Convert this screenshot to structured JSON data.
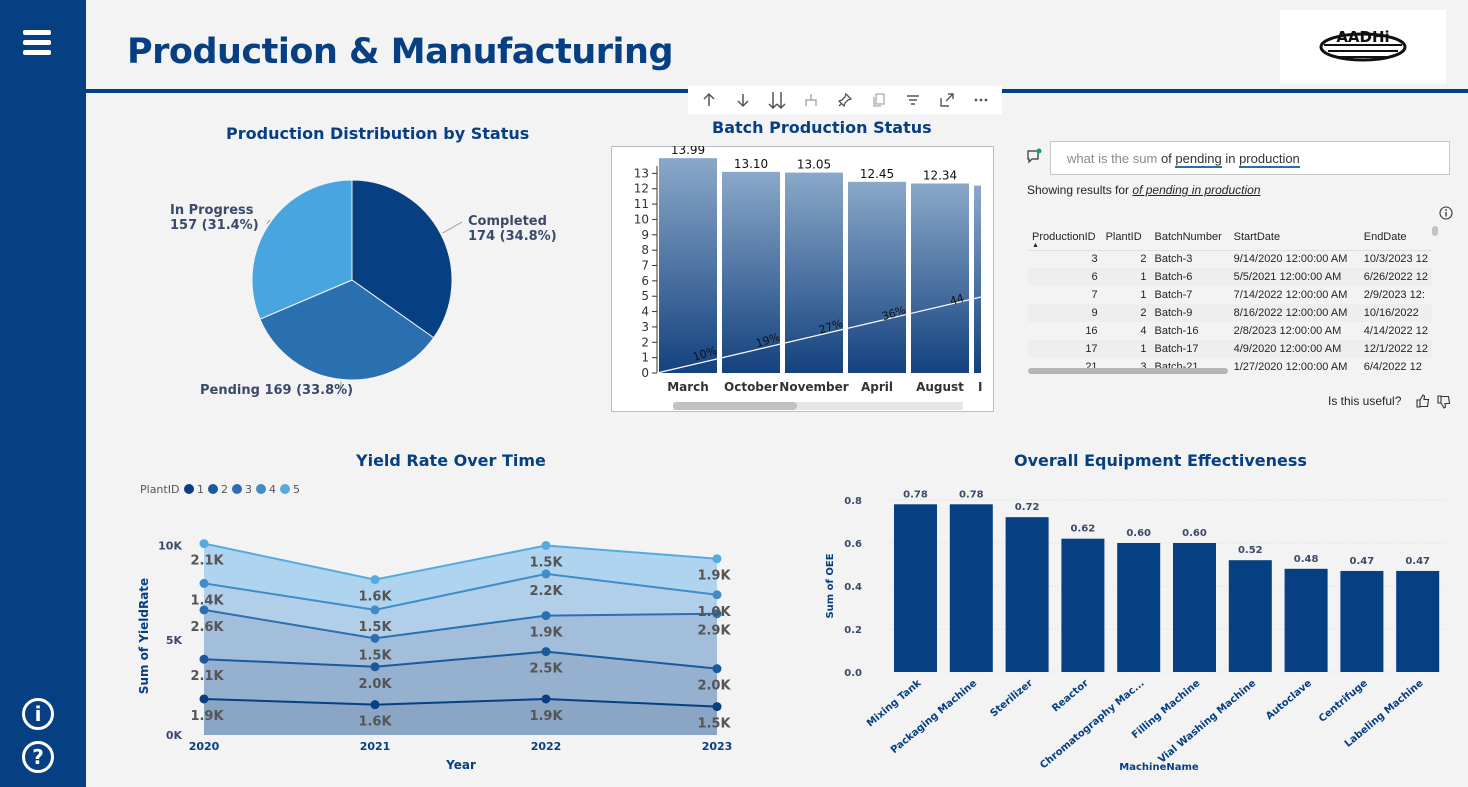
{
  "page": {
    "title": "Production & Manufacturing",
    "logo_text": "AADHi"
  },
  "sidebar": {
    "menu_icon": "hamburger-icon",
    "info_icon": "info-icon",
    "help_icon": "help-icon"
  },
  "toolbar": {
    "icons": [
      "arrow-up-icon",
      "arrow-down-icon",
      "double-arrow-down-icon",
      "expand-hierarchy-icon",
      "pin-icon",
      "copy-icon",
      "filter-icon",
      "focus-mode-icon",
      "more-options-icon"
    ]
  },
  "qna": {
    "placeholder_part": "what is the sum",
    "query_part1": "of",
    "token1": "pending",
    "query_part2": "in",
    "token2": "production",
    "showing_label": "Showing results for",
    "showing_query": "of pending in production",
    "useful_label": "Is this useful?",
    "columns": [
      "ProductionID",
      "PlantID",
      "BatchNumber",
      "StartDate",
      "EndDate"
    ],
    "rows": [
      [
        "3",
        "2",
        "Batch-3",
        "9/14/2020 12:00:00 AM",
        "10/3/2023 12"
      ],
      [
        "6",
        "1",
        "Batch-6",
        "5/5/2021 12:00:00 AM",
        "6/26/2022 12"
      ],
      [
        "7",
        "1",
        "Batch-7",
        "7/14/2022 12:00:00 AM",
        "2/9/2023 12:"
      ],
      [
        "9",
        "2",
        "Batch-9",
        "8/16/2022 12:00:00 AM",
        "10/16/2022"
      ],
      [
        "16",
        "4",
        "Batch-16",
        "2/8/2023 12:00:00 AM",
        "4/14/2022 12"
      ],
      [
        "17",
        "1",
        "Batch-17",
        "4/9/2020 12:00:00 AM",
        "12/1/2022 12"
      ],
      [
        "21",
        "3",
        "Batch-21",
        "1/27/2020 12:00:00 AM",
        "6/4/2022 12"
      ]
    ]
  },
  "chart_data": [
    {
      "id": "pie",
      "type": "pie",
      "title": "Production Distribution by Status",
      "slices": [
        {
          "name": "Completed",
          "value": 174,
          "label_line1": "Completed",
          "label_line2": "174 (34.8%)",
          "color": "#063f82"
        },
        {
          "name": "Pending",
          "value": 169,
          "label_line1": "Pending 169 (33.8%)",
          "label_line2": "",
          "color": "#2a6fb0"
        },
        {
          "name": "In Progress",
          "value": 157,
          "label_line1": "In Progress",
          "label_line2": "157 (31.4%)",
          "color": "#49a5df"
        }
      ]
    },
    {
      "id": "batch",
      "type": "bar",
      "title": "Batch Production Status",
      "categories": [
        "March",
        "October",
        "November",
        "April",
        "August",
        "I"
      ],
      "values": [
        13.99,
        13.1,
        13.05,
        12.45,
        12.34,
        12.2
      ],
      "data_labels": [
        "13.99",
        "13.10",
        "13.05",
        "12.45",
        "12.34",
        ""
      ],
      "yticks": [
        0,
        1,
        2,
        3,
        4,
        5,
        6,
        7,
        8,
        9,
        10,
        11,
        12,
        13
      ],
      "ylim": [
        0,
        14
      ],
      "line_labels": [
        "10%",
        "19%",
        "27%",
        "36%",
        "44"
      ],
      "line_values": [
        0.9,
        1.78,
        2.66,
        3.54,
        4.42
      ]
    },
    {
      "id": "yield",
      "type": "area",
      "title": "Yield Rate Over Time",
      "xlabel": "Year",
      "ylabel": "Sum of YieldRate",
      "legend_title": "PlantID",
      "x": [
        "2020",
        "2021",
        "2022",
        "2023"
      ],
      "ylim": [
        0,
        10500
      ],
      "yticks": [
        {
          "v": 0,
          "label": "0K"
        },
        {
          "v": 5000,
          "label": "5K"
        },
        {
          "v": 10000,
          "label": "10K"
        }
      ],
      "series": [
        {
          "name": "1",
          "values": [
            1900,
            1600,
            1900,
            1500
          ],
          "labels": [
            "1.9K",
            "1.6K",
            "1.9K",
            "1.5K"
          ],
          "color": "#063f82",
          "fill": "#8ba5c4"
        },
        {
          "name": "2",
          "values": [
            2100,
            2000,
            2500,
            2000
          ],
          "labels": [
            "2.1K",
            "2.0K",
            "2.5K",
            "2.0K"
          ],
          "color": "#1a5a9c",
          "fill": "#95b1cf"
        },
        {
          "name": "3",
          "values": [
            2600,
            1500,
            1900,
            2900
          ],
          "labels": [
            "2.6K",
            "1.5K",
            "1.9K",
            "2.9K"
          ],
          "color": "#2a6fb0",
          "fill": "#a2bedb"
        },
        {
          "name": "4",
          "values": [
            1400,
            1500,
            2200,
            1000
          ],
          "labels": [
            "1.4K",
            "1.5K",
            "2.2K",
            "1.0K"
          ],
          "color": "#3f8cc9",
          "fill": "#b1cfe9"
        },
        {
          "name": "5",
          "values": [
            2100,
            1600,
            1500,
            1900
          ],
          "labels": [
            "2.1K",
            "1.6K",
            "1.5K",
            "1.9K"
          ],
          "color": "#56aae2",
          "fill": "#afd4f0"
        }
      ]
    },
    {
      "id": "oee",
      "type": "bar",
      "title": "Overall Equipment Effectiveness",
      "xlabel": "MachineName",
      "ylabel": "Sum of OEE",
      "categories": [
        "Mixing Tank",
        "Packaging Machine",
        "Sterilizer",
        "Reactor",
        "Chromatography Mac...",
        "Filling Machine",
        "Vial Washing Machine",
        "Autoclave",
        "Centrifuge",
        "Labeling Machine"
      ],
      "values": [
        0.78,
        0.78,
        0.72,
        0.62,
        0.6,
        0.6,
        0.52,
        0.48,
        0.47,
        0.47
      ],
      "data_labels": [
        "0.78",
        "0.78",
        "0.72",
        "0.62",
        "0.60",
        "0.60",
        "0.52",
        "0.48",
        "0.47",
        "0.47"
      ],
      "yticks": [
        {
          "v": 0,
          "label": "0.0"
        },
        {
          "v": 0.2,
          "label": "0.2"
        },
        {
          "v": 0.4,
          "label": "0.4"
        },
        {
          "v": 0.6,
          "label": "0.6"
        },
        {
          "v": 0.8,
          "label": "0.8"
        }
      ],
      "ylim": [
        0,
        0.8
      ],
      "color": "#063f82"
    }
  ]
}
